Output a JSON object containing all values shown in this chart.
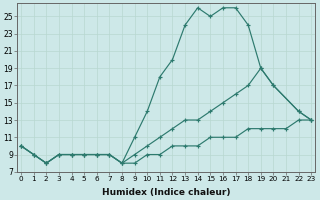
{
  "xlabel": "Humidex (Indice chaleur)",
  "bg_color": "#cde8e8",
  "line_color": "#2d7a6e",
  "grid_color": "#b8d8d0",
  "xlim": [
    -0.3,
    23.3
  ],
  "ylim": [
    7.5,
    26.5
  ],
  "xticks": [
    0,
    1,
    2,
    3,
    4,
    5,
    6,
    7,
    8,
    9,
    10,
    11,
    12,
    13,
    14,
    15,
    16,
    17,
    18,
    19,
    20,
    21,
    22,
    23
  ],
  "yticks": [
    9,
    11,
    13,
    15,
    17,
    19,
    21,
    23,
    25
  ],
  "ytick_labels": [
    "9",
    "11",
    "13",
    "15",
    "17",
    "19",
    "21",
    "23",
    "25"
  ],
  "extra_yticks": [
    7
  ],
  "series": [
    {
      "x": [
        0,
        1,
        2,
        3,
        4,
        5,
        6,
        7,
        8,
        9,
        10,
        11,
        12,
        13,
        14,
        15,
        16,
        17,
        18,
        19,
        20,
        22,
        23
      ],
      "y": [
        10,
        9,
        8,
        9,
        9,
        9,
        9,
        9,
        8,
        11,
        14,
        18,
        20,
        24,
        26,
        25,
        26,
        26,
        24,
        19,
        17,
        14,
        13
      ]
    },
    {
      "x": [
        0,
        1,
        2,
        3,
        4,
        5,
        6,
        7,
        8,
        9,
        10,
        11,
        12,
        13,
        14,
        15,
        16,
        17,
        18,
        19,
        20,
        22,
        23
      ],
      "y": [
        10,
        9,
        8,
        9,
        9,
        9,
        9,
        9,
        8,
        9,
        10,
        11,
        12,
        13,
        13,
        14,
        15,
        16,
        17,
        19,
        17,
        14,
        13
      ]
    },
    {
      "x": [
        0,
        1,
        2,
        3,
        4,
        5,
        6,
        7,
        8,
        9,
        10,
        11,
        12,
        13,
        14,
        15,
        16,
        17,
        18,
        19,
        20,
        21,
        22,
        23
      ],
      "y": [
        10,
        9,
        8,
        9,
        9,
        9,
        9,
        9,
        8,
        8,
        9,
        9,
        10,
        10,
        10,
        11,
        11,
        11,
        12,
        12,
        12,
        12,
        13,
        13
      ]
    }
  ]
}
